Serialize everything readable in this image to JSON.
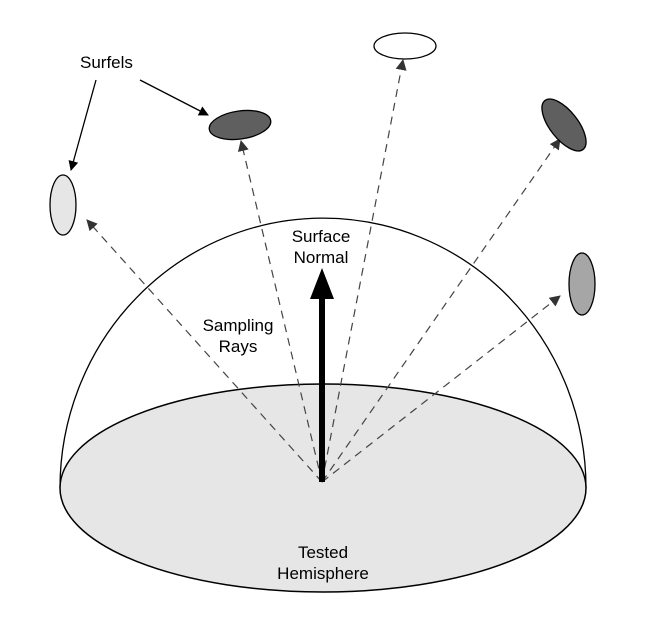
{
  "labels": {
    "surfels": "Surfels",
    "surface_normal": [
      "Surface",
      "Normal"
    ],
    "sampling_rays": [
      "Sampling",
      "Rays"
    ],
    "tested_hemisphere": [
      "Tested",
      "Hemisphere"
    ]
  },
  "colors": {
    "outline": "#000000",
    "base_fill": "#e6e6e6",
    "ray_stroke": "#444444",
    "surfel_white": "#ffffff",
    "surfel_light": "#e6e6e6",
    "surfel_mid": "#a6a6a6",
    "surfel_dark": "#5f5f5f"
  },
  "surfels": [
    {
      "name": "surfel-left",
      "shade": "light"
    },
    {
      "name": "surfel-upper-left",
      "shade": "dark"
    },
    {
      "name": "surfel-top",
      "shade": "white"
    },
    {
      "name": "surfel-upper-right",
      "shade": "dark"
    },
    {
      "name": "surfel-right",
      "shade": "mid"
    }
  ]
}
